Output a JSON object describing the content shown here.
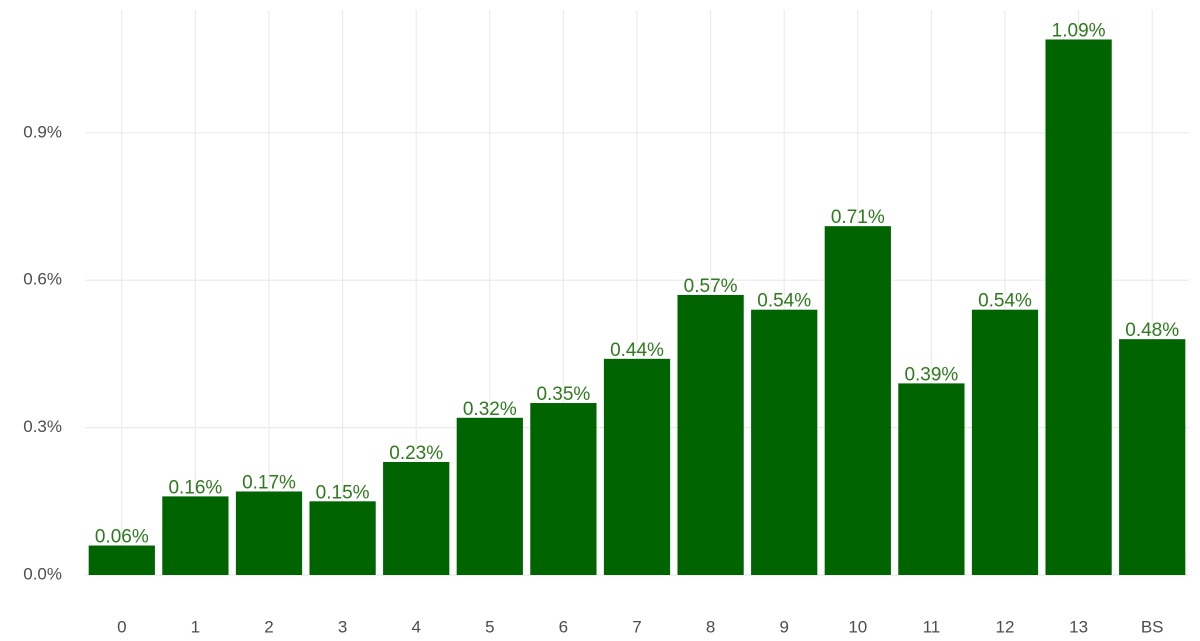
{
  "chart_data": {
    "type": "bar",
    "categories": [
      "0",
      "1",
      "2",
      "3",
      "4",
      "5",
      "6",
      "7",
      "8",
      "9",
      "10",
      "11",
      "12",
      "13",
      "BS"
    ],
    "values": [
      0.06,
      0.16,
      0.17,
      0.15,
      0.23,
      0.32,
      0.35,
      0.44,
      0.57,
      0.54,
      0.71,
      0.39,
      0.54,
      1.09,
      0.48
    ],
    "value_labels": [
      "0.06%",
      "0.16%",
      "0.17%",
      "0.15%",
      "0.23%",
      "0.32%",
      "0.35%",
      "0.44%",
      "0.57%",
      "0.54%",
      "0.71%",
      "0.39%",
      "0.54%",
      "1.09%",
      "0.48%"
    ],
    "color": "#006400",
    "ylim": [
      0,
      1.15
    ],
    "yticks": [
      {
        "value": 0,
        "label": "0.0%"
      },
      {
        "value": 0.3,
        "label": "0.3%"
      },
      {
        "value": 0.6,
        "label": "0.6%"
      },
      {
        "value": 0.9,
        "label": "0.9%"
      }
    ],
    "grid": true
  }
}
